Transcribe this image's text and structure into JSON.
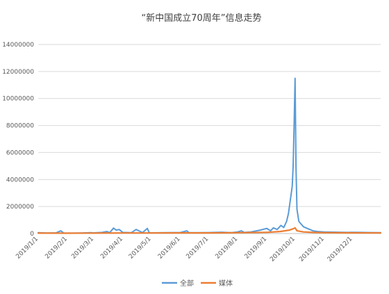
{
  "chart_data": {
    "type": "line",
    "title": "“新中国成立70周年”信息走势",
    "xlabel": "",
    "ylabel": "",
    "ylim": [
      0,
      14000000
    ],
    "yticks": [
      0,
      2000000,
      4000000,
      6000000,
      8000000,
      10000000,
      12000000,
      14000000
    ],
    "ytick_labels": [
      "0",
      "2000000",
      "4000000",
      "6000000",
      "8000000",
      "10000000",
      "12000000",
      "14000000"
    ],
    "xticks": [
      "2019/1/1",
      "2019/2/1",
      "2019/3/1",
      "2019/4/1",
      "2019/5/1",
      "2019/6/1",
      "2019/7/1",
      "2019/8/1",
      "2019/9/1",
      "2019/10/1",
      "2019/11/1",
      "2019/12/1"
    ],
    "grid": "horizontal",
    "legend_position": "bottom",
    "series": [
      {
        "name": "全部",
        "color": "#5b9bd5",
        "points": [
          [
            "2019/1/1",
            60000
          ],
          [
            "2019/1/10",
            40000
          ],
          [
            "2019/1/20",
            50000
          ],
          [
            "2019/1/25",
            200000
          ],
          [
            "2019/1/28",
            40000
          ],
          [
            "2019/2/5",
            30000
          ],
          [
            "2019/2/15",
            40000
          ],
          [
            "2019/2/25",
            60000
          ],
          [
            "2019/3/1",
            50000
          ],
          [
            "2019/3/10",
            80000
          ],
          [
            "2019/3/15",
            150000
          ],
          [
            "2019/3/18",
            60000
          ],
          [
            "2019/3/22",
            400000
          ],
          [
            "2019/3/25",
            250000
          ],
          [
            "2019/3/28",
            300000
          ],
          [
            "2019/4/1",
            80000
          ],
          [
            "2019/4/10",
            60000
          ],
          [
            "2019/4/15",
            300000
          ],
          [
            "2019/4/18",
            200000
          ],
          [
            "2019/4/22",
            70000
          ],
          [
            "2019/4/27",
            380000
          ],
          [
            "2019/4/29",
            60000
          ],
          [
            "2019/5/1",
            50000
          ],
          [
            "2019/5/15",
            60000
          ],
          [
            "2019/5/25",
            70000
          ],
          [
            "2019/6/1",
            70000
          ],
          [
            "2019/6/8",
            200000
          ],
          [
            "2019/6/10",
            70000
          ],
          [
            "2019/6/20",
            60000
          ],
          [
            "2019/7/1",
            70000
          ],
          [
            "2019/7/15",
            100000
          ],
          [
            "2019/7/25",
            60000
          ],
          [
            "2019/8/1",
            120000
          ],
          [
            "2019/8/5",
            200000
          ],
          [
            "2019/8/8",
            80000
          ],
          [
            "2019/8/15",
            120000
          ],
          [
            "2019/8/25",
            250000
          ],
          [
            "2019/9/1",
            380000
          ],
          [
            "2019/9/5",
            200000
          ],
          [
            "2019/9/8",
            420000
          ],
          [
            "2019/9/12",
            300000
          ],
          [
            "2019/9/16",
            600000
          ],
          [
            "2019/9/19",
            450000
          ],
          [
            "2019/9/22",
            900000
          ],
          [
            "2019/9/24",
            1500000
          ],
          [
            "2019/9/26",
            2500000
          ],
          [
            "2019/9/28",
            3500000
          ],
          [
            "2019/9/29",
            5000000
          ],
          [
            "2019/9/30",
            8000000
          ],
          [
            "2019/10/1",
            11500000
          ],
          [
            "2019/10/2",
            5000000
          ],
          [
            "2019/10/3",
            1800000
          ],
          [
            "2019/10/5",
            900000
          ],
          [
            "2019/10/10",
            500000
          ],
          [
            "2019/10/15",
            350000
          ],
          [
            "2019/10/20",
            200000
          ],
          [
            "2019/10/25",
            150000
          ],
          [
            "2019/11/1",
            120000
          ],
          [
            "2019/11/15",
            100000
          ],
          [
            "2019/11/25",
            80000
          ],
          [
            "2019/12/1",
            90000
          ],
          [
            "2019/12/10",
            80000
          ],
          [
            "2019/12/20",
            70000
          ],
          [
            "2019/12/31",
            60000
          ]
        ]
      },
      {
        "name": "媒体",
        "color": "#ed7d31",
        "points": [
          [
            "2019/1/1",
            30000
          ],
          [
            "2019/2/1",
            25000
          ],
          [
            "2019/3/1",
            30000
          ],
          [
            "2019/4/1",
            40000
          ],
          [
            "2019/5/1",
            40000
          ],
          [
            "2019/6/1",
            45000
          ],
          [
            "2019/7/1",
            45000
          ],
          [
            "2019/8/1",
            60000
          ],
          [
            "2019/9/1",
            90000
          ],
          [
            "2019/9/15",
            150000
          ],
          [
            "2019/9/25",
            250000
          ],
          [
            "2019/9/29",
            350000
          ],
          [
            "2019/10/1",
            420000
          ],
          [
            "2019/10/3",
            200000
          ],
          [
            "2019/10/10",
            120000
          ],
          [
            "2019/10/20",
            80000
          ],
          [
            "2019/11/1",
            60000
          ],
          [
            "2019/12/1",
            50000
          ],
          [
            "2019/12/31",
            40000
          ]
        ]
      }
    ]
  }
}
